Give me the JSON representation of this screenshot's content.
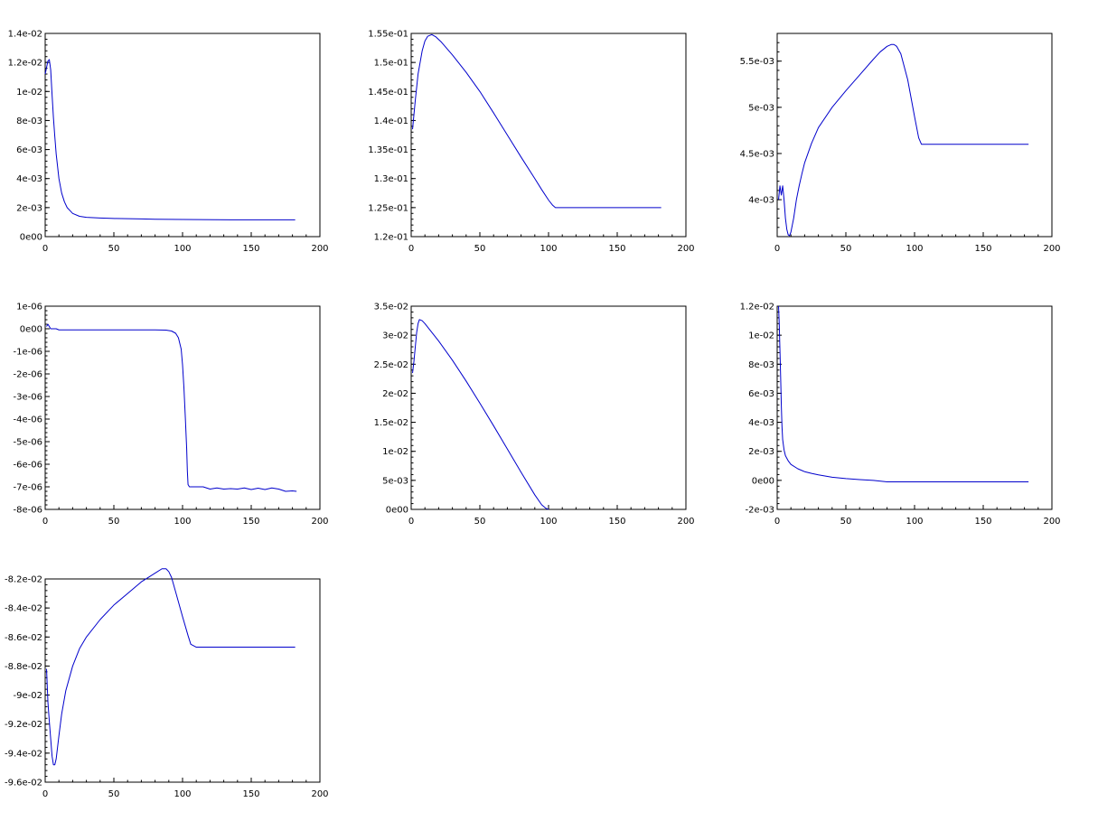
{
  "figure": {
    "background": "#ffffff",
    "line_color": "#0000cc",
    "axis_color": "#000000"
  },
  "chart_data": [
    {
      "type": "line",
      "title": "",
      "xlabel": "",
      "ylabel": "",
      "xlim": [
        0,
        200
      ],
      "ylim": [
        0,
        0.014
      ],
      "x_ticks": [
        0,
        50,
        100,
        150,
        200
      ],
      "x_tick_labels": [
        "0",
        "50",
        "100",
        "150",
        "200"
      ],
      "y_ticks": [
        0,
        0.002,
        0.004,
        0.006,
        0.008,
        0.01,
        0.012,
        0.014
      ],
      "y_tick_labels": [
        "0e00",
        "2e-03",
        "4e-03",
        "6e-03",
        "8e-03",
        "1e-02",
        "1.2e-02",
        "1.4e-02"
      ],
      "grid": false,
      "legend": "none",
      "series": [
        {
          "x": [
            0,
            2,
            3,
            4,
            5,
            6,
            7,
            8,
            10,
            12,
            14,
            16,
            18,
            20,
            25,
            30,
            40,
            50,
            70,
            80,
            100,
            140,
            182
          ],
          "y": [
            0.0112,
            0.0121,
            0.0122,
            0.0115,
            0.0098,
            0.0082,
            0.0069,
            0.0057,
            0.004,
            0.003,
            0.0024,
            0.002,
            0.0018,
            0.0016,
            0.0014,
            0.00133,
            0.00128,
            0.00125,
            0.00122,
            0.0012,
            0.00118,
            0.00116,
            0.00116
          ]
        }
      ]
    },
    {
      "type": "line",
      "title": "",
      "xlabel": "",
      "ylabel": "",
      "xlim": [
        0,
        200
      ],
      "ylim": [
        0.12,
        0.155
      ],
      "x_ticks": [
        0,
        50,
        100,
        150,
        200
      ],
      "x_tick_labels": [
        "0",
        "50",
        "100",
        "150",
        "200"
      ],
      "y_ticks": [
        0.12,
        0.125,
        0.13,
        0.135,
        0.14,
        0.145,
        0.15,
        0.155
      ],
      "y_tick_labels": [
        "1.2e-01",
        "1.25e-01",
        "1.3e-01",
        "1.35e-01",
        "1.4e-01",
        "1.45e-01",
        "1.5e-01",
        "1.55e-01"
      ],
      "grid": false,
      "legend": "none",
      "series": [
        {
          "x": [
            1,
            3,
            5,
            8,
            10,
            12,
            15,
            18,
            22,
            30,
            40,
            50,
            60,
            70,
            80,
            90,
            95,
            100,
            103,
            105,
            110,
            150,
            182
          ],
          "y": [
            0.1385,
            0.1435,
            0.148,
            0.152,
            0.1537,
            0.1545,
            0.1548,
            0.1544,
            0.1535,
            0.1513,
            0.1483,
            0.145,
            0.1413,
            0.1375,
            0.1337,
            0.13,
            0.1281,
            0.1263,
            0.1254,
            0.125,
            0.125,
            0.125,
            0.125
          ]
        }
      ]
    },
    {
      "type": "line",
      "title": "",
      "xlabel": "",
      "ylabel": "",
      "xlim": [
        0,
        200
      ],
      "ylim": [
        0.0036,
        0.0058
      ],
      "x_ticks": [
        0,
        50,
        100,
        150,
        200
      ],
      "x_tick_labels": [
        "0",
        "50",
        "100",
        "150",
        "200"
      ],
      "y_ticks": [
        0.004,
        0.0045,
        0.005,
        0.0055
      ],
      "y_tick_labels": [
        "4e-03",
        "4.5e-03",
        "5e-03",
        "5.5e-03"
      ],
      "grid": false,
      "legend": "none",
      "series": [
        {
          "x": [
            1,
            2,
            3,
            4,
            5,
            6,
            7,
            8,
            9,
            10,
            12,
            14,
            16,
            18,
            20,
            25,
            30,
            40,
            50,
            60,
            70,
            75,
            80,
            83,
            85,
            87,
            90,
            95,
            100,
            103,
            105,
            110,
            150,
            183
          ],
          "y": [
            0.004,
            0.00415,
            0.00405,
            0.00415,
            0.004,
            0.0038,
            0.00368,
            0.00362,
            0.00361,
            0.00365,
            0.0038,
            0.004,
            0.00415,
            0.00428,
            0.0044,
            0.00461,
            0.00478,
            0.005,
            0.00518,
            0.00535,
            0.00552,
            0.0056,
            0.00566,
            0.00568,
            0.00568,
            0.00566,
            0.00558,
            0.0053,
            0.0049,
            0.00467,
            0.0046,
            0.0046,
            0.0046,
            0.0046
          ]
        }
      ]
    },
    {
      "type": "line",
      "title": "",
      "xlabel": "",
      "ylabel": "",
      "xlim": [
        0,
        200
      ],
      "ylim": [
        -8e-06,
        1e-06
      ],
      "x_ticks": [
        0,
        50,
        100,
        150,
        200
      ],
      "x_tick_labels": [
        "0",
        "50",
        "100",
        "150",
        "200"
      ],
      "y_ticks": [
        -8e-06,
        -7e-06,
        -6e-06,
        -5e-06,
        -4e-06,
        -3e-06,
        -2e-06,
        -1e-06,
        0,
        1e-06
      ],
      "y_tick_labels": [
        "-8e-06",
        "-7e-06",
        "-6e-06",
        "-5e-06",
        "-4e-06",
        "-3e-06",
        "-2e-06",
        "-1e-06",
        "0e00",
        "1e-06"
      ],
      "grid": false,
      "legend": "none",
      "series": [
        {
          "x": [
            1,
            2,
            3,
            4,
            5,
            8,
            10,
            20,
            50,
            80,
            88,
            92,
            95,
            97,
            99,
            100,
            101,
            102,
            103,
            103.5,
            104,
            105,
            110,
            115,
            120,
            125,
            130,
            135,
            140,
            145,
            150,
            155,
            160,
            165,
            170,
            175,
            180,
            183
          ],
          "y": [
            1e-07,
            2e-07,
            1e-07,
            0,
            0,
            0,
            -5e-08,
            -5e-08,
            -5e-08,
            -5e-08,
            -6e-08,
            -1e-07,
            -2e-07,
            -4e-07,
            -9e-07,
            -1.6e-06,
            -2.6e-06,
            -3.9e-06,
            -5.3e-06,
            -6.3e-06,
            -6.9e-06,
            -7e-06,
            -7e-06,
            -7e-06,
            -7.1e-06,
            -7.05e-06,
            -7.1e-06,
            -7.08e-06,
            -7.1e-06,
            -7.05e-06,
            -7.12e-06,
            -7.06e-06,
            -7.12e-06,
            -7.05e-06,
            -7.1e-06,
            -7.2e-06,
            -7.18e-06,
            -7.2e-06
          ]
        }
      ]
    },
    {
      "type": "line",
      "title": "",
      "xlabel": "",
      "ylabel": "",
      "xlim": [
        0,
        200
      ],
      "ylim": [
        0,
        0.035
      ],
      "x_ticks": [
        0,
        50,
        100,
        150,
        200
      ],
      "x_tick_labels": [
        "0",
        "50",
        "100",
        "150",
        "200"
      ],
      "y_ticks": [
        0,
        0.005,
        0.01,
        0.015,
        0.02,
        0.025,
        0.03,
        0.035
      ],
      "y_tick_labels": [
        "0e00",
        "5e-03",
        "1e-02",
        "1.5e-02",
        "2e-02",
        "2.5e-02",
        "3e-02",
        "3.5e-02"
      ],
      "grid": false,
      "legend": "none",
      "series": [
        {
          "x": [
            1,
            2,
            3,
            4,
            5,
            6,
            8,
            10,
            15,
            20,
            30,
            40,
            50,
            60,
            70,
            80,
            90,
            95,
            98,
            100
          ],
          "y": [
            0.0235,
            0.0255,
            0.028,
            0.0305,
            0.032,
            0.0327,
            0.0325,
            0.032,
            0.0305,
            0.029,
            0.0257,
            0.0221,
            0.0183,
            0.0144,
            0.0104,
            0.0064,
            0.0025,
            0.0008,
            0.0002,
            0
          ]
        }
      ]
    },
    {
      "type": "line",
      "title": "",
      "xlabel": "",
      "ylabel": "",
      "xlim": [
        0,
        200
      ],
      "ylim": [
        -0.002,
        0.012
      ],
      "x_ticks": [
        0,
        50,
        100,
        150,
        200
      ],
      "x_tick_labels": [
        "0",
        "50",
        "100",
        "150",
        "200"
      ],
      "y_ticks": [
        -0.002,
        0,
        0.002,
        0.004,
        0.006,
        0.008,
        0.01,
        0.012
      ],
      "y_tick_labels": [
        "-2e-03",
        "0e00",
        "2e-03",
        "4e-03",
        "6e-03",
        "8e-03",
        "1e-02",
        "1.2e-02"
      ],
      "grid": false,
      "legend": "none",
      "series": [
        {
          "x": [
            1,
            1.5,
            2,
            2.5,
            3,
            3.5,
            4,
            5,
            6,
            8,
            10,
            15,
            20,
            25,
            30,
            40,
            50,
            60,
            70,
            80,
            100,
            150,
            183
          ],
          "y": [
            0.012,
            0.0108,
            0.009,
            0.0072,
            0.0052,
            0.0037,
            0.0028,
            0.0021,
            0.0017,
            0.00135,
            0.0011,
            0.0008,
            0.0006,
            0.00048,
            0.00038,
            0.00022,
            0.00012,
            5e-05,
            0,
            -0.0001,
            -0.0001,
            -0.0001,
            -0.0001
          ]
        }
      ]
    },
    {
      "type": "line",
      "title": "",
      "xlabel": "",
      "ylabel": "",
      "xlim": [
        0,
        200
      ],
      "ylim": [
        -0.096,
        -0.082
      ],
      "x_ticks": [
        0,
        50,
        100,
        150,
        200
      ],
      "x_tick_labels": [
        "0",
        "50",
        "100",
        "150",
        "200"
      ],
      "y_ticks": [
        -0.096,
        -0.094,
        -0.092,
        -0.09,
        -0.088,
        -0.086,
        -0.084,
        -0.082
      ],
      "y_tick_labels": [
        "-9.6e-02",
        "-9.4e-02",
        "-9.2e-02",
        "-9e-02",
        "-8.8e-02",
        "-8.6e-02",
        "-8.4e-02",
        "-8.2e-02"
      ],
      "grid": false,
      "legend": "none",
      "series": [
        {
          "x": [
            1,
            2,
            3,
            4,
            5,
            6,
            7,
            8,
            9,
            10,
            12,
            15,
            20,
            25,
            30,
            40,
            50,
            60,
            70,
            80,
            85,
            88,
            90,
            92,
            95,
            100,
            104,
            106,
            110,
            150,
            182
          ],
          "y": [
            -0.0882,
            -0.0905,
            -0.0918,
            -0.093,
            -0.0942,
            -0.0948,
            -0.0948,
            -0.0944,
            -0.0936,
            -0.0928,
            -0.0913,
            -0.0897,
            -0.088,
            -0.0868,
            -0.086,
            -0.0848,
            -0.0838,
            -0.083,
            -0.0822,
            -0.0816,
            -0.0813,
            -0.0813,
            -0.0815,
            -0.0819,
            -0.0829,
            -0.0846,
            -0.0859,
            -0.0865,
            -0.0867,
            -0.0867,
            -0.0867
          ]
        }
      ]
    }
  ]
}
